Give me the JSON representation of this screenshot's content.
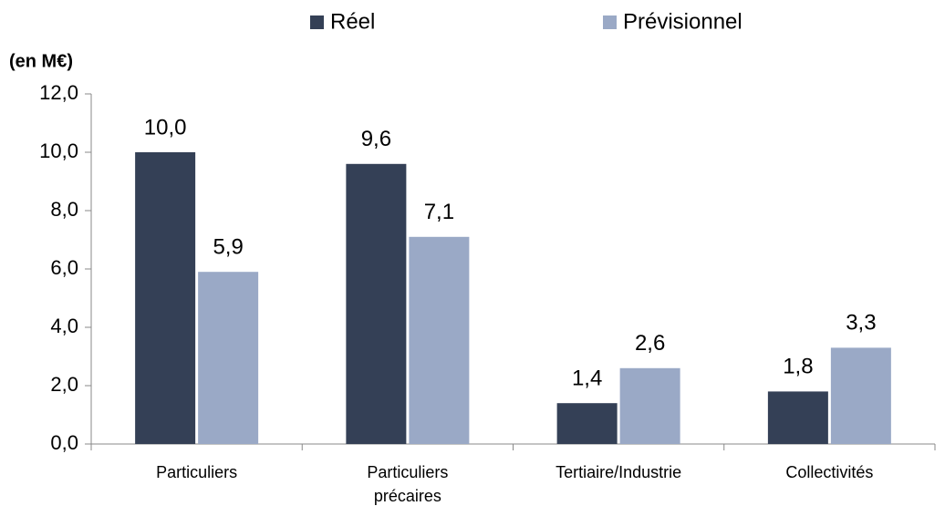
{
  "chart_data": {
    "type": "bar",
    "y_label": "(en M€)",
    "categories": [
      "Particuliers",
      "Particuliers précaires",
      "Tertiaire/Industrie",
      "Collectivités"
    ],
    "series": [
      {
        "name": "Réel",
        "color": "#344056",
        "values": [
          10.0,
          9.6,
          1.4,
          1.8
        ],
        "value_labels": [
          "10,0",
          "9,6",
          "1,4",
          "1,8"
        ]
      },
      {
        "name": "Prévisionnel",
        "color": "#9aa9c6",
        "values": [
          5.9,
          7.1,
          2.6,
          3.3
        ],
        "value_labels": [
          "5,9",
          "7,1",
          "2,6",
          "3,3"
        ]
      }
    ],
    "ylim": [
      0,
      12
    ],
    "yticks": [
      {
        "value": 0,
        "label": "0,0"
      },
      {
        "value": 2,
        "label": "2,0"
      },
      {
        "value": 4,
        "label": "4,0"
      },
      {
        "value": 6,
        "label": "6,0"
      },
      {
        "value": 8,
        "label": "8,0"
      },
      {
        "value": 10,
        "label": "10,0"
      },
      {
        "value": 12,
        "label": "12,0"
      }
    ],
    "legend": "top"
  }
}
